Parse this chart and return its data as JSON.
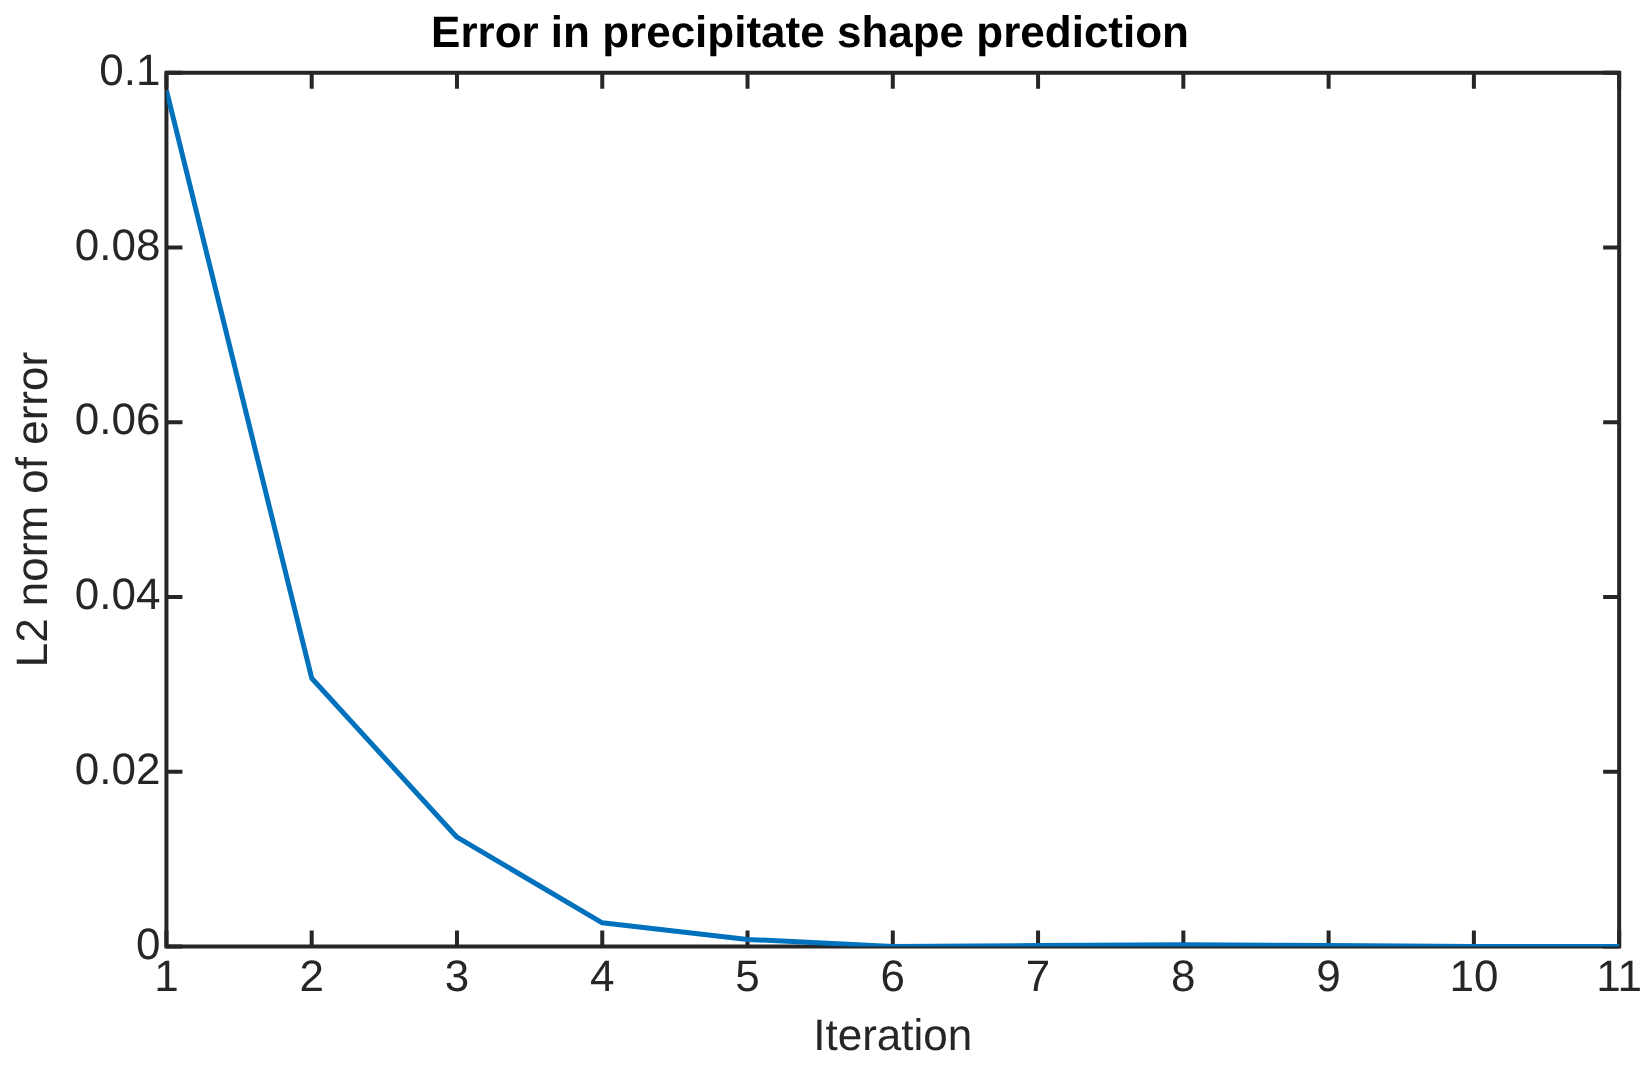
{
  "chart_data": {
    "type": "line",
    "title": "Error in precipitate shape prediction",
    "xlabel": "Iteration",
    "ylabel": "L2 norm of error",
    "x": [
      1,
      2,
      3,
      4,
      5,
      6,
      7,
      8,
      9,
      10,
      11
    ],
    "series": [
      {
        "color": "#0072bd",
        "values": [
          0.098,
          0.0307,
          0.0125,
          0.0027,
          0.0008,
          0,
          0.0001,
          0.0002,
          0.0001,
          0,
          0
        ]
      }
    ],
    "xlim": [
      1,
      11
    ],
    "xticks": [
      1,
      2,
      3,
      4,
      5,
      6,
      7,
      8,
      9,
      10,
      11
    ],
    "ylim": [
      0,
      0.1
    ],
    "yticks": [
      0,
      0.02,
      0.04,
      0.06,
      0.08,
      0.1
    ],
    "grid": false,
    "legend": false,
    "marker": "none",
    "line_style": "solid"
  }
}
